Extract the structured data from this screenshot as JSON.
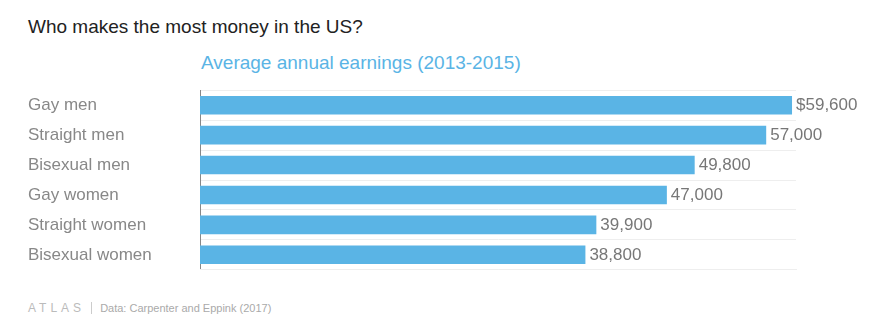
{
  "chart_data": {
    "type": "bar",
    "orientation": "horizontal",
    "title": "Who makes the most money in the US?",
    "subtitle": "Average annual earnings (2013-2015)",
    "categories": [
      "Gay men",
      "Straight men",
      "Bisexual men",
      "Gay women",
      "Straight women",
      "Bisexual women"
    ],
    "values": [
      59600,
      57000,
      49800,
      47000,
      39900,
      38800
    ],
    "value_labels": [
      "$59,600",
      "57,000",
      "49,800",
      "47,000",
      "39,900",
      "38,800"
    ],
    "data_labels": true,
    "color": "#5ab4e5",
    "xlim": [
      0,
      60000
    ],
    "tick_labels": "y",
    "grid": true,
    "credit": "ATLAS",
    "source": "Data:  Carpenter and Eppink (2017)"
  }
}
